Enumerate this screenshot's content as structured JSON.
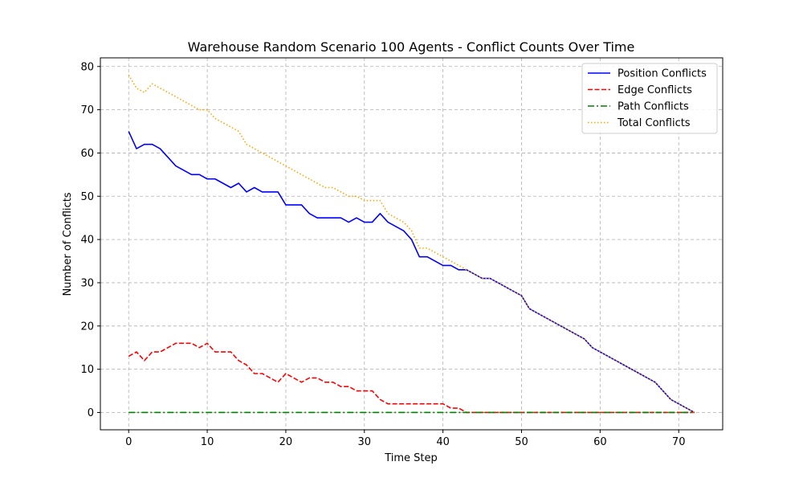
{
  "chart_data": {
    "type": "line",
    "title": "Warehouse Random Scenario 100 Agents - Conflict Counts Over Time",
    "xlabel": "Time Step",
    "ylabel": "Number of Conflicts",
    "xlim": [
      -3.6,
      75.6
    ],
    "ylim": [
      -4,
      82
    ],
    "xticks": [
      0,
      10,
      20,
      30,
      40,
      50,
      60,
      70
    ],
    "yticks": [
      0,
      10,
      20,
      30,
      40,
      50,
      60,
      70,
      80
    ],
    "grid": true,
    "legend_position": "top-right",
    "x": [
      0,
      1,
      2,
      3,
      4,
      5,
      6,
      7,
      8,
      9,
      10,
      11,
      12,
      13,
      14,
      15,
      16,
      17,
      18,
      19,
      20,
      21,
      22,
      23,
      24,
      25,
      26,
      27,
      28,
      29,
      30,
      31,
      32,
      33,
      34,
      35,
      36,
      37,
      38,
      39,
      40,
      41,
      42,
      43,
      44,
      45,
      46,
      47,
      48,
      49,
      50,
      51,
      52,
      53,
      54,
      55,
      56,
      57,
      58,
      59,
      60,
      61,
      62,
      63,
      64,
      65,
      66,
      67,
      68,
      69,
      70,
      71,
      72
    ],
    "series": [
      {
        "name": "Position Conflicts",
        "color": "#0000ff",
        "dash": "solid",
        "values": [
          65,
          61,
          62,
          62,
          61,
          59,
          57,
          56,
          55,
          55,
          54,
          54,
          53,
          52,
          53,
          51,
          52,
          51,
          51,
          51,
          48,
          48,
          48,
          46,
          45,
          45,
          45,
          45,
          44,
          45,
          44,
          44,
          46,
          44,
          43,
          42,
          40,
          36,
          36,
          35,
          34,
          34,
          33,
          33,
          32,
          31,
          31,
          30,
          29,
          28,
          27,
          24,
          23,
          22,
          21,
          20,
          19,
          18,
          17,
          15,
          14,
          13,
          12,
          11,
          10,
          9,
          8,
          7,
          5,
          3,
          2,
          1,
          0
        ]
      },
      {
        "name": "Edge Conflicts",
        "color": "#ff0000",
        "dash": "dashed",
        "values": [
          13,
          14,
          12,
          14,
          14,
          15,
          16,
          16,
          16,
          15,
          16,
          14,
          14,
          14,
          12,
          11,
          9,
          9,
          8,
          7,
          9,
          8,
          7,
          8,
          8,
          7,
          7,
          6,
          6,
          5,
          5,
          5,
          3,
          2,
          2,
          2,
          2,
          2,
          2,
          2,
          2,
          1,
          1,
          0,
          0,
          0,
          0,
          0,
          0,
          0,
          0,
          0,
          0,
          0,
          0,
          0,
          0,
          0,
          0,
          0,
          0,
          0,
          0,
          0,
          0,
          0,
          0,
          0,
          0,
          0,
          0,
          0,
          0
        ]
      },
      {
        "name": "Path Conflicts",
        "color": "#008000",
        "dash": "dashdot",
        "values": [
          0,
          0,
          0,
          0,
          0,
          0,
          0,
          0,
          0,
          0,
          0,
          0,
          0,
          0,
          0,
          0,
          0,
          0,
          0,
          0,
          0,
          0,
          0,
          0,
          0,
          0,
          0,
          0,
          0,
          0,
          0,
          0,
          0,
          0,
          0,
          0,
          0,
          0,
          0,
          0,
          0,
          0,
          0,
          0,
          0,
          0,
          0,
          0,
          0,
          0,
          0,
          0,
          0,
          0,
          0,
          0,
          0,
          0,
          0,
          0,
          0,
          0,
          0,
          0,
          0,
          0,
          0,
          0,
          0,
          0,
          0,
          0,
          0
        ]
      },
      {
        "name": "Total Conflicts",
        "color": "#ffa500",
        "dash": "dotted",
        "values": [
          78,
          75,
          74,
          76,
          75,
          74,
          73,
          72,
          71,
          70,
          70,
          68,
          67,
          66,
          65,
          62,
          61,
          60,
          59,
          58,
          57,
          56,
          55,
          54,
          53,
          52,
          52,
          51,
          50,
          50,
          49,
          49,
          49,
          46,
          45,
          44,
          42,
          38,
          38,
          37,
          36,
          35,
          34,
          33,
          32,
          31,
          31,
          30,
          29,
          28,
          27,
          24,
          23,
          22,
          21,
          20,
          19,
          18,
          17,
          15,
          14,
          13,
          12,
          11,
          10,
          9,
          8,
          7,
          5,
          3,
          2,
          1,
          0
        ]
      }
    ]
  }
}
